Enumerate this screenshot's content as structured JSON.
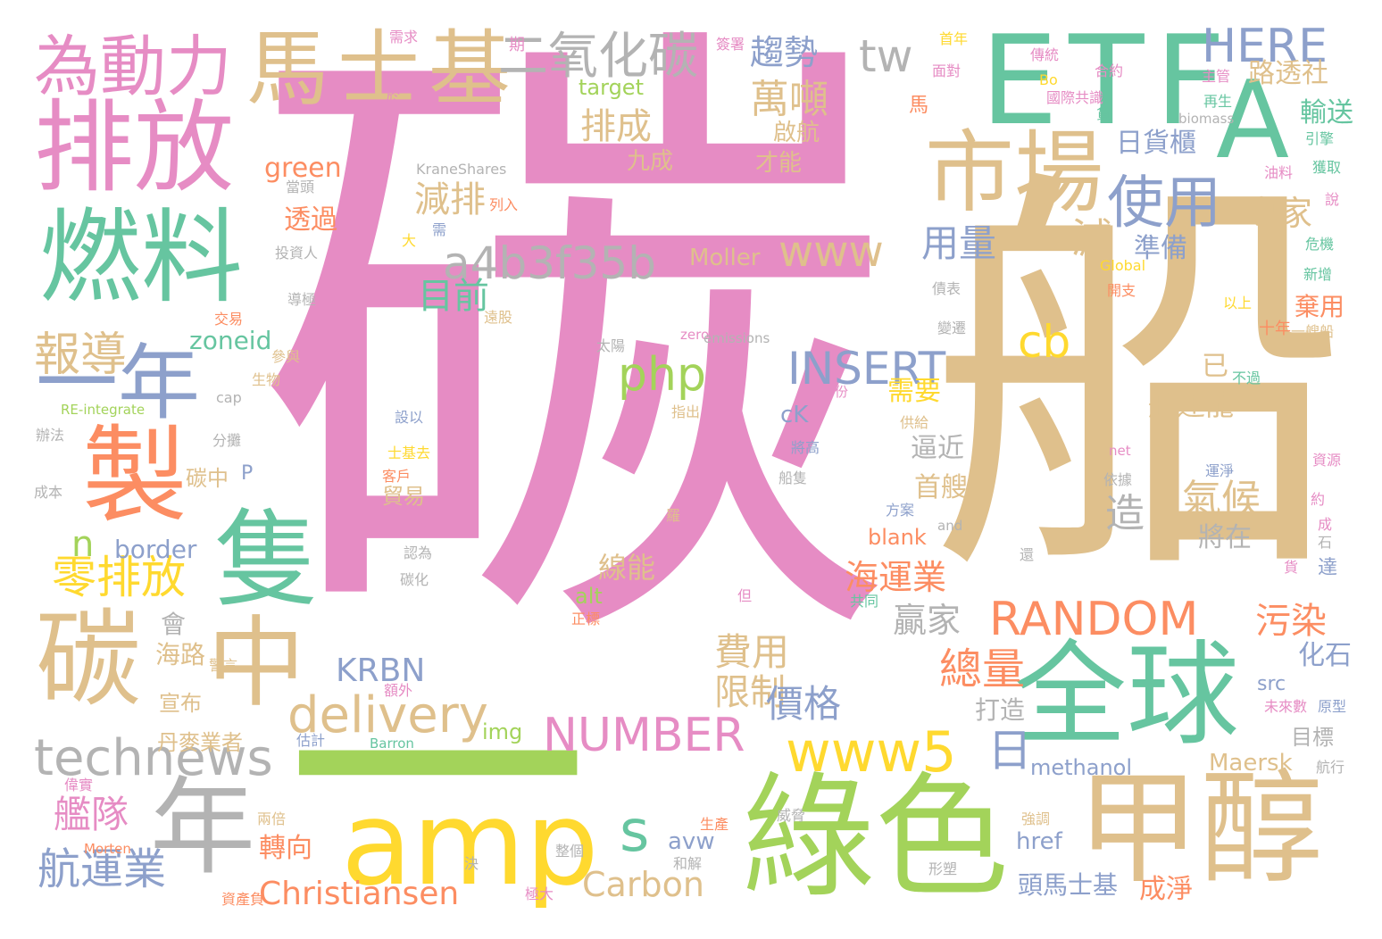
{
  "palette": {
    "pink": "#e68cc4",
    "tan": "#dfc08c",
    "teal": "#66c5a0",
    "green": "#a3d35a",
    "blue": "#8da0cb",
    "orange": "#fc8d62",
    "yellow": "#ffd92f",
    "gray": "#b3b3b3"
  },
  "words": [
    {
      "text": "碳",
      "color": "pink"
    },
    {
      "text": "船",
      "color": "tan"
    },
    {
      "text": "一",
      "color": "green"
    },
    {
      "text": "ETF",
      "color": "teal"
    },
    {
      "text": "甲醇",
      "color": "tan"
    },
    {
      "text": "綠色",
      "color": "green"
    },
    {
      "text": "全球",
      "color": "teal"
    },
    {
      "text": "amp",
      "color": "yellow"
    },
    {
      "text": "燃料",
      "color": "teal"
    },
    {
      "text": "排放",
      "color": "pink"
    },
    {
      "text": "製",
      "color": "orange"
    },
    {
      "text": "隻",
      "color": "teal"
    },
    {
      "text": "碳",
      "color": "tan"
    },
    {
      "text": "中",
      "color": "tan"
    },
    {
      "text": "年",
      "color": "gray"
    },
    {
      "text": "一年",
      "color": "blue"
    },
    {
      "text": "市場",
      "color": "tan"
    },
    {
      "text": "A",
      "color": "teal"
    },
    {
      "text": "馬士基",
      "color": "tan"
    },
    {
      "text": "為動力",
      "color": "pink"
    },
    {
      "text": "二氧化碳",
      "color": "gray"
    },
    {
      "text": "technews",
      "color": "gray"
    },
    {
      "text": "delivery",
      "color": "tan"
    },
    {
      "text": "a4b3f35b",
      "color": "gray"
    },
    {
      "text": "www5",
      "color": "yellow"
    },
    {
      "text": "www",
      "color": "tan"
    },
    {
      "text": "使用",
      "color": "blue"
    },
    {
      "text": "HERE",
      "color": "blue"
    },
    {
      "text": "tw",
      "color": "gray"
    },
    {
      "text": "RANDOM",
      "color": "orange"
    },
    {
      "text": "NUMBER",
      "color": "pink"
    },
    {
      "text": "INSERT",
      "color": "blue"
    },
    {
      "text": "php",
      "color": "green"
    },
    {
      "text": "Christiansen",
      "color": "orange"
    },
    {
      "text": "Carbon",
      "color": "tan"
    },
    {
      "text": "s",
      "color": "teal"
    },
    {
      "text": "cb",
      "color": "yellow"
    },
    {
      "text": "日",
      "color": "blue"
    },
    {
      "text": "趨勢",
      "color": "blue"
    },
    {
      "text": "萬噸",
      "color": "tan"
    },
    {
      "text": "排成",
      "color": "tan"
    },
    {
      "text": "減排",
      "color": "tan"
    },
    {
      "text": "用量",
      "color": "blue"
    },
    {
      "text": "目前",
      "color": "teal"
    },
    {
      "text": "專家",
      "color": "tan"
    },
    {
      "text": "日貨櫃",
      "color": "blue"
    },
    {
      "text": "路透社",
      "color": "tan"
    },
    {
      "text": "輸送",
      "color": "teal"
    },
    {
      "text": "減",
      "color": "tan"
    },
    {
      "text": "準備",
      "color": "blue"
    },
    {
      "text": "報導",
      "color": "tan"
    },
    {
      "text": "零排放",
      "color": "yellow"
    },
    {
      "text": "艦隊",
      "color": "pink"
    },
    {
      "text": "航運業",
      "color": "blue"
    },
    {
      "text": "KRBN",
      "color": "blue"
    },
    {
      "text": "n",
      "color": "green"
    },
    {
      "text": "border",
      "color": "blue"
    },
    {
      "text": "green",
      "color": "orange"
    },
    {
      "text": "透過",
      "color": "orange"
    },
    {
      "text": "zoneid",
      "color": "teal"
    },
    {
      "text": "Moller",
      "color": "tan"
    },
    {
      "text": "需要",
      "color": "yellow"
    },
    {
      "text": "航運龍",
      "color": "tan"
    },
    {
      "text": "已",
      "color": "tan"
    },
    {
      "text": "逼近",
      "color": "gray"
    },
    {
      "text": "首艘",
      "color": "tan"
    },
    {
      "text": "造",
      "color": "gray"
    },
    {
      "text": "氣候",
      "color": "tan"
    },
    {
      "text": "將在",
      "color": "gray"
    },
    {
      "text": "海運業",
      "color": "orange"
    },
    {
      "text": "贏家",
      "color": "gray"
    },
    {
      "text": "污染",
      "color": "orange"
    },
    {
      "text": "費用",
      "color": "tan"
    },
    {
      "text": "限制",
      "color": "tan"
    },
    {
      "text": "價格",
      "color": "blue"
    },
    {
      "text": "總量",
      "color": "orange"
    },
    {
      "text": "線能",
      "color": "tan"
    },
    {
      "text": "化石",
      "color": "blue"
    },
    {
      "text": "打造",
      "color": "gray"
    },
    {
      "text": "目標",
      "color": "gray"
    },
    {
      "text": "methanol",
      "color": "blue"
    },
    {
      "text": "Maersk",
      "color": "tan"
    },
    {
      "text": "轉向",
      "color": "orange"
    },
    {
      "text": "avw",
      "color": "blue"
    },
    {
      "text": "href",
      "color": "blue"
    },
    {
      "text": "頭馬士基",
      "color": "blue"
    },
    {
      "text": "成淨",
      "color": "orange"
    },
    {
      "text": "img",
      "color": "green"
    },
    {
      "text": "alt",
      "color": "green"
    },
    {
      "text": "src",
      "color": "blue"
    },
    {
      "text": "棄用",
      "color": "orange"
    },
    {
      "text": "blank",
      "color": "orange"
    },
    {
      "text": "target",
      "color": "green"
    },
    {
      "text": "九成",
      "color": "tan"
    },
    {
      "text": "才能",
      "color": "tan"
    },
    {
      "text": "啟航",
      "color": "tan"
    },
    {
      "text": "cK",
      "color": "blue"
    },
    {
      "text": "會",
      "color": "gray"
    },
    {
      "text": "海路",
      "color": "tan"
    },
    {
      "text": "宣布",
      "color": "tan"
    },
    {
      "text": "丹麥業者",
      "color": "tan"
    },
    {
      "text": "貿易",
      "color": "tan"
    },
    {
      "text": "碳中",
      "color": "tan"
    },
    {
      "text": "P",
      "color": "blue"
    },
    {
      "text": "馬",
      "color": "orange"
    },
    {
      "text": "十年",
      "color": "orange"
    },
    {
      "text": "以上",
      "color": "yellow"
    },
    {
      "text": "不過",
      "color": "teal"
    },
    {
      "text": "一艘船",
      "color": "tan"
    },
    {
      "text": "新增",
      "color": "teal"
    },
    {
      "text": "危機",
      "color": "teal"
    },
    {
      "text": "獲取",
      "color": "teal"
    },
    {
      "text": "引擎",
      "color": "teal"
    },
    {
      "text": "油料",
      "color": "pink"
    },
    {
      "text": "再生",
      "color": "teal"
    },
    {
      "text": "主管",
      "color": "pink"
    },
    {
      "text": "合約",
      "color": "pink"
    },
    {
      "text": "國際共識",
      "color": "pink"
    },
    {
      "text": "傳統",
      "color": "pink"
    },
    {
      "text": "Bo",
      "color": "yellow"
    },
    {
      "text": "biomass",
      "color": "gray"
    },
    {
      "text": "首年",
      "color": "yellow"
    },
    {
      "text": "面對",
      "color": "pink"
    },
    {
      "text": "需求",
      "color": "pink"
    },
    {
      "text": "期",
      "color": "pink"
    },
    {
      "text": "簽署",
      "color": "pink"
    },
    {
      "text": "KraneShares",
      "color": "gray"
    },
    {
      "text": "當頭",
      "color": "gray"
    },
    {
      "text": "列入",
      "color": "orange"
    },
    {
      "text": "投資人",
      "color": "gray"
    },
    {
      "text": "導極",
      "color": "gray"
    },
    {
      "text": "大",
      "color": "yellow"
    },
    {
      "text": "交易",
      "color": "orange"
    },
    {
      "text": "遠股",
      "color": "tan"
    },
    {
      "text": "參與",
      "color": "tan"
    },
    {
      "text": "生物",
      "color": "tan"
    },
    {
      "text": "RE-integrate",
      "color": "green"
    },
    {
      "text": "cap",
      "color": "gray"
    },
    {
      "text": "辦法",
      "color": "gray"
    },
    {
      "text": "分攤",
      "color": "gray"
    },
    {
      "text": "成本",
      "color": "gray"
    },
    {
      "text": "太陽",
      "color": "gray"
    },
    {
      "text": "zero",
      "color": "pink"
    },
    {
      "text": "emissions",
      "color": "gray"
    },
    {
      "text": "指出",
      "color": "tan"
    },
    {
      "text": "首份",
      "color": "pink"
    },
    {
      "text": "Global",
      "color": "yellow"
    },
    {
      "text": "債表",
      "color": "gray"
    },
    {
      "text": "開支",
      "color": "orange"
    },
    {
      "text": "變遷",
      "color": "gray"
    },
    {
      "text": "供給",
      "color": "tan"
    },
    {
      "text": "設以",
      "color": "blue"
    },
    {
      "text": "將高",
      "color": "blue"
    },
    {
      "text": "net",
      "color": "pink"
    },
    {
      "text": "運淨",
      "color": "blue"
    },
    {
      "text": "依據",
      "color": "gray"
    },
    {
      "text": "資源",
      "color": "pink"
    },
    {
      "text": "約",
      "color": "pink"
    },
    {
      "text": "客戶",
      "color": "orange"
    },
    {
      "text": "士基去",
      "color": "yellow"
    },
    {
      "text": "卻",
      "color": "pink"
    },
    {
      "text": "認為",
      "color": "gray"
    },
    {
      "text": "碳化",
      "color": "gray"
    },
    {
      "text": "船隻",
      "color": "gray"
    },
    {
      "text": "方案",
      "color": "blue"
    },
    {
      "text": "and",
      "color": "gray"
    },
    {
      "text": "共同",
      "color": "teal"
    },
    {
      "text": "正標",
      "color": "orange"
    },
    {
      "text": "警言",
      "color": "tan"
    },
    {
      "text": "額外",
      "color": "pink"
    },
    {
      "text": "估計",
      "color": "blue"
    },
    {
      "text": "Barron",
      "color": "teal"
    },
    {
      "text": "偉實",
      "color": "pink"
    },
    {
      "text": "兩倍",
      "color": "tan"
    },
    {
      "text": "Morten",
      "color": "orange"
    },
    {
      "text": "資產負",
      "color": "orange"
    },
    {
      "text": "極大",
      "color": "pink"
    },
    {
      "text": "整個",
      "color": "gray"
    },
    {
      "text": "決",
      "color": "gray"
    },
    {
      "text": "和解",
      "color": "gray"
    },
    {
      "text": "生產",
      "color": "orange"
    },
    {
      "text": "威脅",
      "color": "gray"
    },
    {
      "text": "強調",
      "color": "tan"
    },
    {
      "text": "形塑",
      "color": "gray"
    },
    {
      "text": "原型",
      "color": "blue"
    },
    {
      "text": "未來數",
      "color": "pink"
    },
    {
      "text": "航行",
      "color": "gray"
    },
    {
      "text": "達",
      "color": "blue"
    },
    {
      "text": "成",
      "color": "pink"
    },
    {
      "text": "石",
      "color": "gray"
    },
    {
      "text": "貨",
      "color": "pink"
    },
    {
      "text": "羅",
      "color": "tan"
    },
    {
      "text": "還",
      "color": "gray"
    },
    {
      "text": "但",
      "color": "pink"
    },
    {
      "text": "於",
      "color": "pink"
    },
    {
      "text": "需",
      "color": "blue"
    },
    {
      "text": "貨",
      "color": "teal"
    },
    {
      "text": "說",
      "color": "pink"
    }
  ]
}
